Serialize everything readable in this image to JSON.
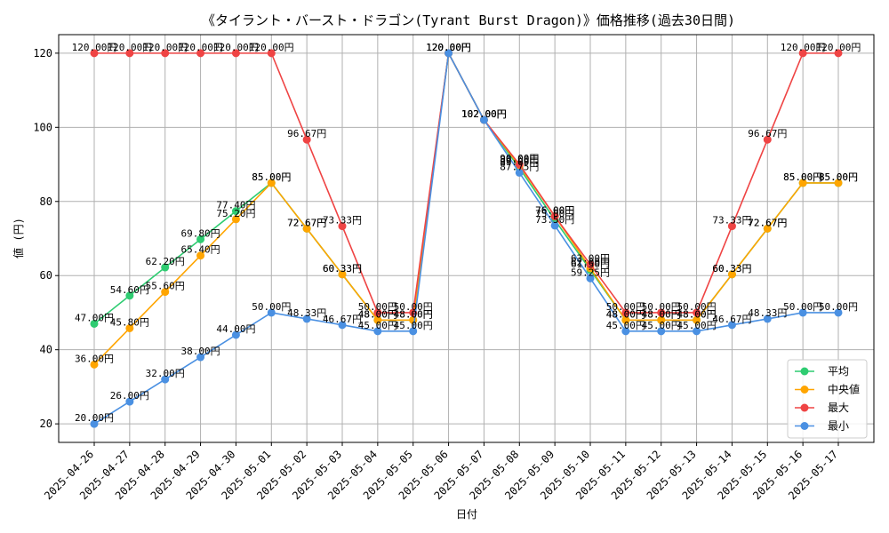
{
  "chart_data": {
    "type": "line",
    "title": "《タイラント・バースト・ドラゴン(Tyrant Burst Dragon)》価格推移(過去30日間)",
    "xlabel": "日付",
    "ylabel": "値 (円)",
    "ylim": [
      15,
      125
    ],
    "yticks": [
      20,
      40,
      60,
      80,
      100,
      120
    ],
    "grid": true,
    "legend_position": "bottom-right",
    "value_suffix": "円",
    "categories": [
      "2025-04-26",
      "2025-04-27",
      "2025-04-28",
      "2025-04-29",
      "2025-04-30",
      "2025-05-01",
      "2025-05-02",
      "2025-05-03",
      "2025-05-04",
      "2025-05-05",
      "2025-05-06",
      "2025-05-07",
      "2025-05-08",
      "2025-05-09",
      "2025-05-10",
      "2025-05-11",
      "2025-05-12",
      "2025-05-13",
      "2025-05-14",
      "2025-05-15",
      "2025-05-16",
      "2025-05-17"
    ],
    "series": [
      {
        "name": "平均",
        "color": "#2ecc71",
        "values": [
          47.0,
          54.6,
          62.2,
          69.8,
          77.4,
          85.0,
          72.67,
          60.33,
          48.0,
          48.0,
          120.0,
          102.0,
          89.0,
          75.0,
          61.5,
          48.0,
          48.0,
          48.0,
          60.33,
          72.67,
          85.0,
          85.0
        ]
      },
      {
        "name": "中央値",
        "color": "#ffa500",
        "values": [
          36.0,
          45.8,
          55.6,
          65.4,
          75.2,
          85.0,
          72.67,
          60.33,
          48.0,
          48.0,
          120.0,
          102.0,
          89.6,
          76.0,
          62.0,
          48.0,
          48.0,
          48.0,
          60.33,
          72.67,
          85.0,
          85.0
        ]
      },
      {
        "name": "最大",
        "color": "#ef4444",
        "values": [
          120.0,
          120.0,
          120.0,
          120.0,
          120.0,
          120.0,
          96.67,
          73.33,
          50.0,
          50.0,
          120.0,
          102.0,
          90.0,
          76.0,
          63.0,
          50.0,
          50.0,
          50.0,
          73.33,
          96.67,
          120.0,
          120.0
        ]
      },
      {
        "name": "最小",
        "color": "#4a90e2",
        "values": [
          20.0,
          26.0,
          32.0,
          38.0,
          44.0,
          50.0,
          48.33,
          46.67,
          45.0,
          45.0,
          120.0,
          102.0,
          87.75,
          73.5,
          59.25,
          45.0,
          45.0,
          45.0,
          46.67,
          48.33,
          50.0,
          50.0
        ]
      }
    ]
  }
}
